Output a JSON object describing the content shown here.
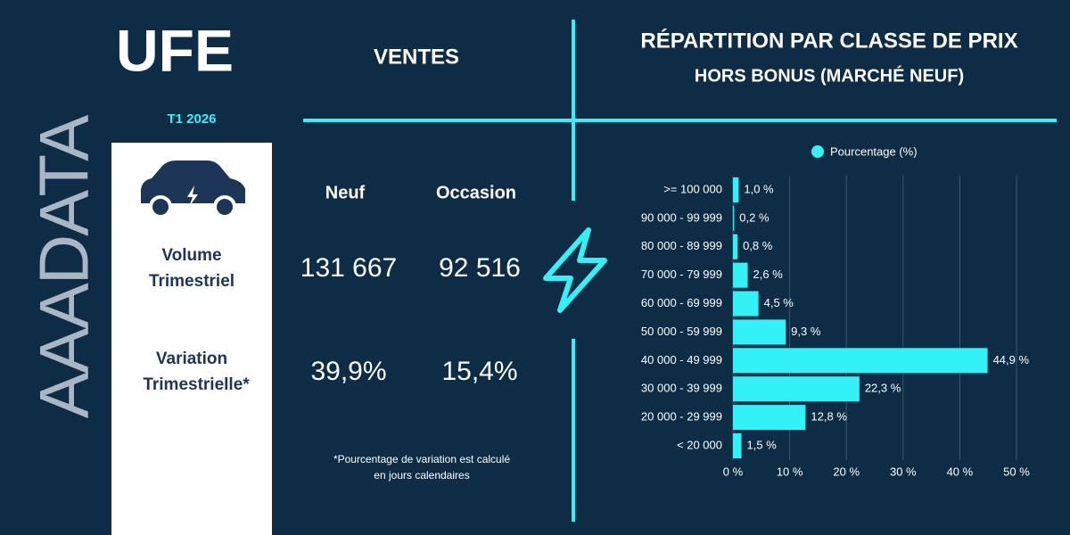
{
  "header": {
    "logo": "UFE",
    "period": "T1 2026",
    "brand": "AAADATA",
    "section": "VENTES"
  },
  "stats": {
    "columns": [
      "Neuf",
      "Occasion"
    ],
    "rows": [
      {
        "label": [
          "Volume",
          "Trimestriel"
        ],
        "values": [
          "131 667",
          "92 516"
        ]
      },
      {
        "label": [
          "Variation",
          "Trimestrielle*"
        ],
        "values": [
          "39,9%",
          "15,4%"
        ]
      }
    ],
    "footnote": [
      "*Pourcentage de variation est calculé",
      "en jours calendaires"
    ]
  },
  "chart_data": {
    "type": "bar",
    "orientation": "horizontal",
    "title": "RÉPARTITION PAR CLASSE DE PRIX",
    "subtitle": "HORS BONUS (MARCHÉ NEUF)",
    "categories": [
      ">= 100 000",
      "90 000 - 99 999",
      "80 000 - 89 999",
      "70 000 - 79 999",
      "60 000 - 69 999",
      "50 000 - 59 999",
      "40 000 - 49 999",
      "30 000 - 39 999",
      "20 000 - 29 999",
      "< 20 000"
    ],
    "series": [
      {
        "name": "Pourcentage (%)",
        "color": "#33f2f7",
        "values": [
          1.0,
          0.2,
          0.8,
          2.6,
          4.5,
          9.3,
          44.9,
          22.3,
          12.8,
          1.5
        ],
        "value_labels": [
          "1,0 %",
          "0,2 %",
          "0,8 %",
          "2,6 %",
          "4,5 %",
          "9,3 %",
          "44,9 %",
          "22,3 %",
          "12,8 %",
          "1,5 %"
        ]
      }
    ],
    "xlim": [
      0,
      50
    ],
    "xticks": [
      {
        "value": 0,
        "label": "0 %"
      },
      {
        "value": 10,
        "label": "10 %"
      },
      {
        "value": 20,
        "label": "20 %"
      },
      {
        "value": 30,
        "label": "30 %"
      },
      {
        "value": 40,
        "label": "40 %"
      },
      {
        "value": 50,
        "label": "50 %"
      }
    ],
    "grid": true,
    "legend": "top"
  }
}
